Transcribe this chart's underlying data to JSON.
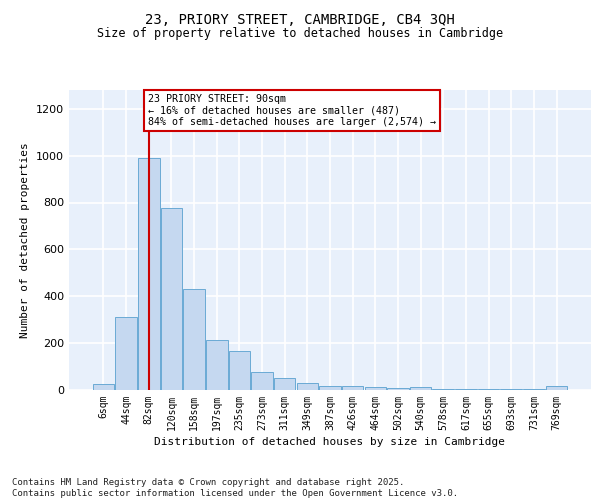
{
  "title1": "23, PRIORY STREET, CAMBRIDGE, CB4 3QH",
  "title2": "Size of property relative to detached houses in Cambridge",
  "xlabel": "Distribution of detached houses by size in Cambridge",
  "ylabel": "Number of detached properties",
  "categories": [
    "6sqm",
    "44sqm",
    "82sqm",
    "120sqm",
    "158sqm",
    "197sqm",
    "235sqm",
    "273sqm",
    "311sqm",
    "349sqm",
    "387sqm",
    "426sqm",
    "464sqm",
    "502sqm",
    "540sqm",
    "578sqm",
    "617sqm",
    "655sqm",
    "693sqm",
    "731sqm",
    "769sqm"
  ],
  "bar_values": [
    25,
    310,
    990,
    775,
    430,
    215,
    165,
    75,
    50,
    30,
    18,
    15,
    12,
    10,
    12,
    5,
    3,
    3,
    3,
    3,
    15
  ],
  "bar_color": "#c5d8f0",
  "bar_edge_color": "#6aaad4",
  "background_color": "#e8f0fb",
  "grid_color": "#ffffff",
  "vline_x_index": 2,
  "vline_color": "#cc0000",
  "annotation_text": "23 PRIORY STREET: 90sqm\n← 16% of detached houses are smaller (487)\n84% of semi-detached houses are larger (2,574) →",
  "annotation_box_color": "#cc0000",
  "ylim": [
    0,
    1280
  ],
  "yticks": [
    0,
    200,
    400,
    600,
    800,
    1000,
    1200
  ],
  "footer1": "Contains HM Land Registry data © Crown copyright and database right 2025.",
  "footer2": "Contains public sector information licensed under the Open Government Licence v3.0."
}
